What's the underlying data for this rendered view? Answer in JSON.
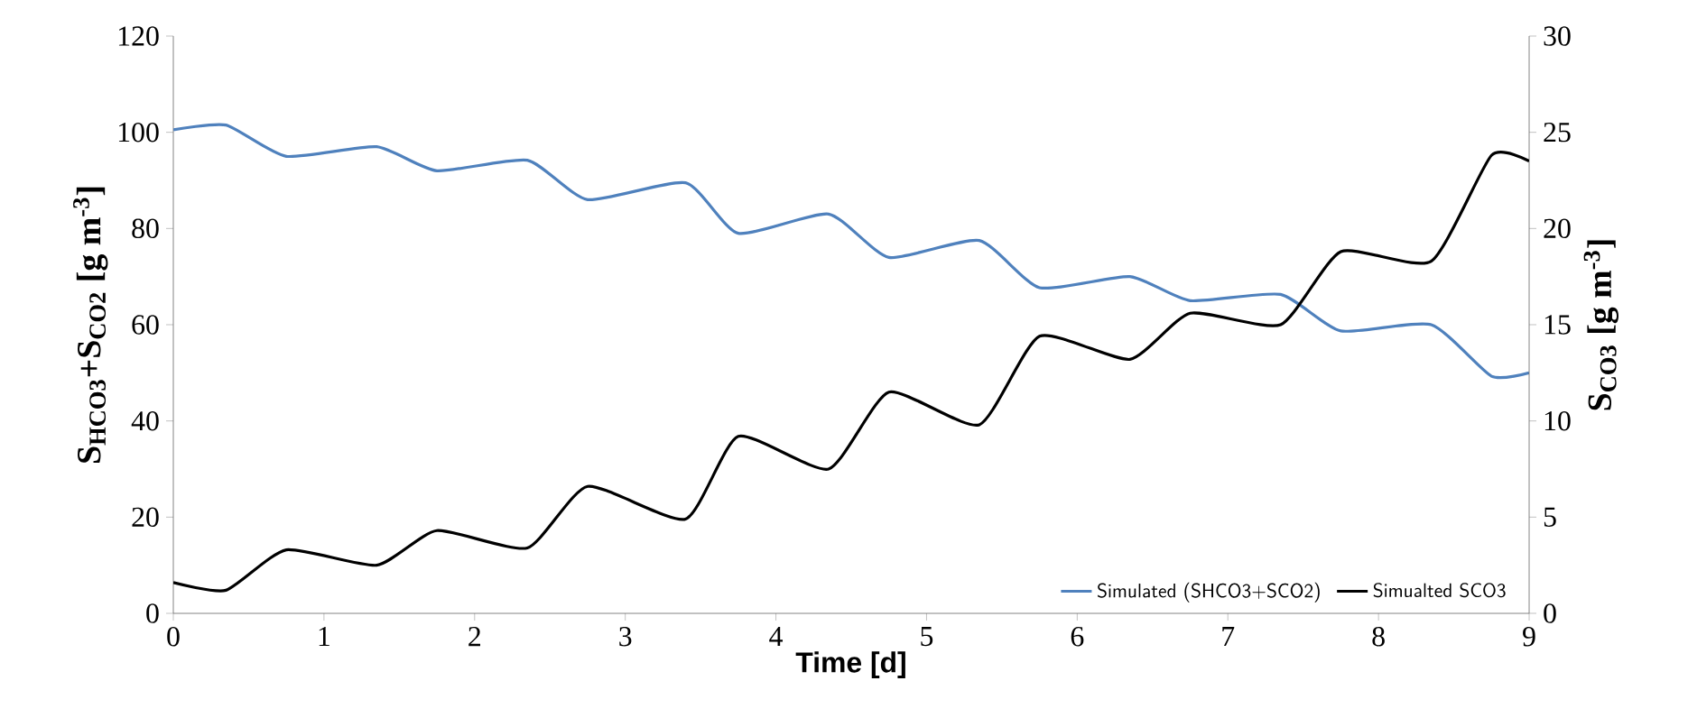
{
  "chart_data": {
    "type": "line",
    "xlabel": "Time [d]",
    "ylabel": "S$_{HCO3}$+S$_{CO2}$ [g m$^{-3}$]",
    "y2label": "S$_{CO3}$ [g m$^{-3}$]",
    "xlim": [
      0,
      9
    ],
    "xticks": [
      0,
      1,
      2,
      3,
      4,
      5,
      6,
      7,
      8,
      9
    ],
    "ylim": [
      0,
      120
    ],
    "yticks": [
      0,
      20,
      40,
      60,
      80,
      100,
      120
    ],
    "y2lim": [
      0,
      30
    ],
    "y2ticks": [
      0,
      5,
      10,
      15,
      20,
      25,
      30
    ],
    "legend": "bottom right",
    "grid": false,
    "marker": "none",
    "line_style": "solid",
    "series": [
      {
        "name": "Simulated (SHCO3+SCO2)",
        "color": "#4f81bd",
        "x": [
          0,
          0.35,
          0.75,
          1.35,
          1.75,
          2.35,
          2.75,
          3.4,
          3.75,
          4.35,
          4.75,
          5.35,
          5.75,
          6.35,
          6.75,
          7.35,
          7.75,
          8.35,
          8.75,
          9
        ],
        "values": [
          100.5,
          101.5,
          95,
          97,
          92,
          94.2,
          86,
          89.5,
          79,
          83,
          74,
          77.5,
          67.7,
          70,
          65,
          66.3,
          58.7,
          60,
          49.3,
          50
        ]
      },
      {
        "name": "Simualted SCO3",
        "color": "#000000",
        "axis": "y2",
        "x": [
          0,
          0.35,
          0.75,
          1.35,
          1.75,
          2.35,
          2.75,
          3.4,
          3.75,
          4.35,
          4.75,
          5.35,
          5.75,
          6.35,
          6.75,
          7.35,
          7.75,
          8.35,
          8.75,
          9
        ],
        "values": [
          1.6,
          1.2,
          3.3,
          2.5,
          4.3,
          3.4,
          6.6,
          4.9,
          9.2,
          7.5,
          11.5,
          9.8,
          14.4,
          13.2,
          15.6,
          15,
          18.8,
          18.3,
          23.8,
          23.5
        ]
      }
    ]
  }
}
